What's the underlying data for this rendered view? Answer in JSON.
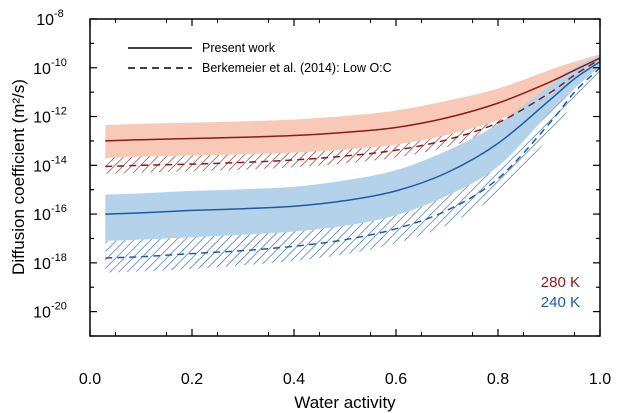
{
  "chart_data": {
    "type": "line",
    "xlabel": "Water activity",
    "ylabel": "Diffusion coefficient (m²/s)",
    "yscale": "log",
    "xlim": [
      0.0,
      1.0
    ],
    "ylim_log10": [
      -21,
      -8
    ],
    "x_ticks": [
      0.0,
      0.2,
      0.4,
      0.6,
      0.8,
      1.0
    ],
    "x_tick_labels": [
      "0.0",
      "0.2",
      "0.4",
      "0.6",
      "0.8",
      "1.0"
    ],
    "y_ticks_log10": [
      -20,
      -18,
      -16,
      -14,
      -12,
      -10,
      -8
    ],
    "y_tick_labels": [
      "10-20",
      "10-18",
      "10-16",
      "10-14",
      "10-12",
      "10-10",
      "10-8"
    ],
    "legend": {
      "position": "top-left",
      "entries": [
        {
          "label": "Present work",
          "style": "solid"
        },
        {
          "label": "Berkemeier et al. (2014): Low O:C",
          "style": "dashed"
        }
      ]
    },
    "annotations": [
      {
        "text": "280 K",
        "color": "#8b1a1a"
      },
      {
        "text": "240 K",
        "color": "#1f5aa8"
      }
    ],
    "colors": {
      "280K_line": "#8b1a1a",
      "280K_band": "#f7c9b6",
      "240K_line": "#1f5aa8",
      "240K_band": "#b4d3ea"
    },
    "series": [
      {
        "name": "280 K",
        "style": "solid",
        "x": [
          0.03,
          0.1,
          0.2,
          0.3,
          0.4,
          0.5,
          0.6,
          0.7,
          0.8,
          0.9,
          0.95,
          1.0
        ],
        "log10_y": [
          -13.0,
          -12.95,
          -12.9,
          -12.85,
          -12.78,
          -12.65,
          -12.45,
          -12.05,
          -11.45,
          -10.6,
          -10.1,
          -9.6
        ],
        "band_upper_log10": [
          -12.35,
          -12.3,
          -12.25,
          -12.2,
          -12.12,
          -11.98,
          -11.75,
          -11.35,
          -10.85,
          -10.1,
          -9.75,
          -9.45
        ],
        "band_lower_log10": [
          -13.7,
          -13.65,
          -13.6,
          -13.55,
          -13.48,
          -13.35,
          -13.15,
          -12.75,
          -12.15,
          -11.2,
          -10.6,
          -9.95
        ]
      },
      {
        "name": "280 K",
        "style": "dashed",
        "x": [
          0.03,
          0.1,
          0.2,
          0.3,
          0.4,
          0.5,
          0.6,
          0.7,
          0.8,
          0.9,
          0.95,
          1.0
        ],
        "log10_y": [
          -14.05,
          -14.0,
          -13.95,
          -13.88,
          -13.78,
          -13.62,
          -13.38,
          -12.95,
          -12.25,
          -11.05,
          -10.3,
          -9.65
        ],
        "band_upper_log10": [
          -13.7,
          -13.65,
          -13.6,
          -13.55,
          -13.48,
          -13.35,
          -13.15,
          -12.75,
          -12.15,
          -11.2,
          -10.6,
          -9.95
        ],
        "band_lower_log10": [
          -14.35,
          -14.3,
          -14.25,
          -14.18,
          -14.08,
          -13.92,
          -13.68,
          -13.25,
          -12.55,
          -11.4,
          -10.6,
          -9.85
        ]
      },
      {
        "name": "240 K",
        "style": "solid",
        "x": [
          0.03,
          0.1,
          0.2,
          0.3,
          0.4,
          0.5,
          0.6,
          0.7,
          0.8,
          0.9,
          0.95,
          1.0
        ],
        "log10_y": [
          -16.0,
          -15.95,
          -15.85,
          -15.78,
          -15.68,
          -15.45,
          -15.05,
          -14.3,
          -13.1,
          -11.35,
          -10.45,
          -9.75
        ],
        "band_upper_log10": [
          -15.2,
          -15.15,
          -15.05,
          -14.98,
          -14.88,
          -14.62,
          -14.2,
          -13.4,
          -12.3,
          -10.75,
          -10.0,
          -9.5
        ],
        "band_lower_log10": [
          -17.1,
          -17.05,
          -16.95,
          -16.85,
          -16.72,
          -16.48,
          -16.05,
          -15.25,
          -14.05,
          -11.85,
          -10.85,
          -9.95
        ]
      },
      {
        "name": "240 K",
        "style": "dashed",
        "x": [
          0.03,
          0.1,
          0.2,
          0.3,
          0.4,
          0.5,
          0.6,
          0.7,
          0.8,
          0.9,
          0.95,
          1.0
        ],
        "log10_y": [
          -17.8,
          -17.75,
          -17.62,
          -17.5,
          -17.32,
          -17.05,
          -16.6,
          -15.85,
          -14.55,
          -12.3,
          -11.0,
          -10.0
        ],
        "band_upper_log10": [
          -17.1,
          -17.05,
          -16.95,
          -16.85,
          -16.72,
          -16.48,
          -16.05,
          -15.25,
          -14.05,
          -11.85,
          -10.85,
          -9.95
        ],
        "band_lower_log10": [
          -18.4,
          -18.35,
          -18.25,
          -18.1,
          -17.92,
          -17.65,
          -17.2,
          -16.45,
          -15.15,
          -12.85,
          -11.4,
          -10.35
        ]
      }
    ]
  }
}
